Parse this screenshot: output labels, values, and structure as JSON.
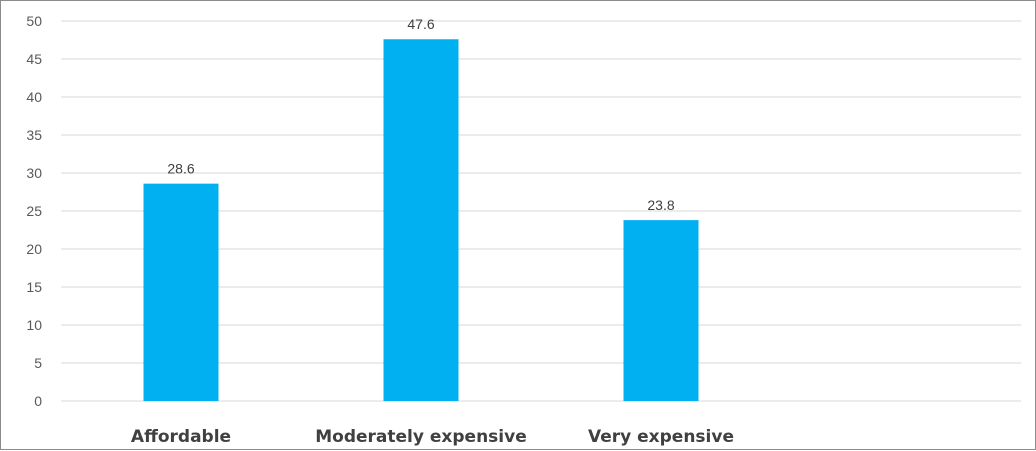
{
  "chart_data": {
    "type": "bar",
    "categories": [
      "Affordable",
      "Moderately expensive",
      "Very expensive"
    ],
    "values": [
      28.6,
      47.6,
      23.8
    ],
    "data_labels": [
      "28.6",
      "47.6",
      "23.8"
    ],
    "title": "",
    "xlabel": "",
    "ylabel": "",
    "ylim": [
      0,
      50
    ],
    "y_ticks": [
      0,
      5,
      10,
      15,
      20,
      25,
      30,
      35,
      40,
      45,
      50
    ],
    "grid": true,
    "legend": "none",
    "bar_color": "#00b0f0"
  }
}
